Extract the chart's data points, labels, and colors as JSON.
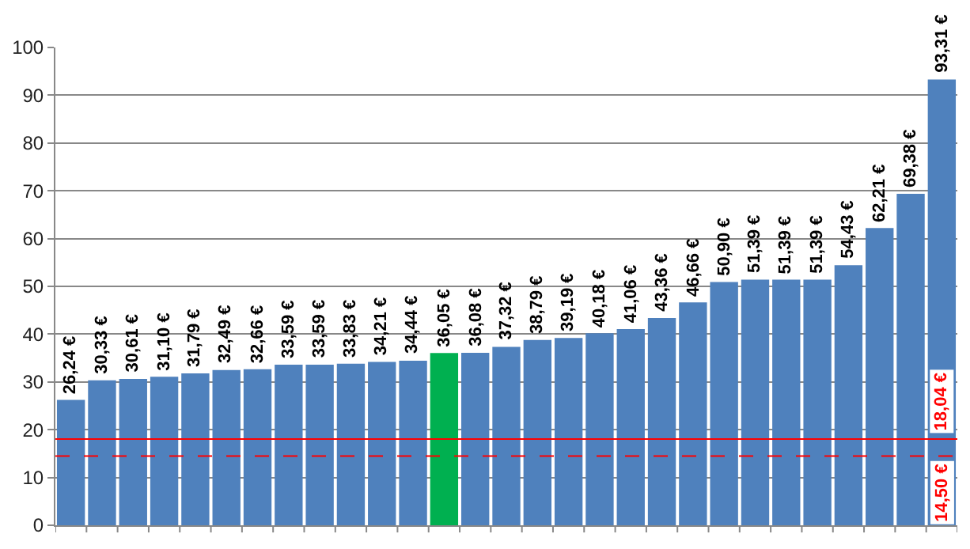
{
  "chart_data": {
    "type": "bar",
    "categories": [
      null,
      null,
      null,
      null,
      null,
      null,
      null,
      null,
      null,
      null,
      null,
      null,
      null,
      null,
      null,
      null,
      null,
      null,
      null,
      null,
      null,
      null,
      null,
      null,
      null,
      null,
      null,
      null,
      null
    ],
    "values": [
      26.24,
      30.33,
      30.61,
      31.1,
      31.79,
      32.49,
      32.66,
      33.59,
      33.59,
      33.83,
      34.21,
      34.44,
      36.05,
      36.08,
      37.32,
      38.79,
      39.19,
      40.18,
      41.06,
      43.36,
      46.66,
      50.9,
      51.39,
      51.39,
      51.39,
      54.43,
      62.21,
      69.38,
      93.31
    ],
    "colors": [
      "#4f81bd",
      "#4f81bd",
      "#4f81bd",
      "#4f81bd",
      "#4f81bd",
      "#4f81bd",
      "#4f81bd",
      "#4f81bd",
      "#4f81bd",
      "#4f81bd",
      "#4f81bd",
      "#4f81bd",
      "#00b050",
      "#4f81bd",
      "#4f81bd",
      "#4f81bd",
      "#4f81bd",
      "#4f81bd",
      "#4f81bd",
      "#4f81bd",
      "#4f81bd",
      "#4f81bd",
      "#4f81bd",
      "#4f81bd",
      "#4f81bd",
      "#4f81bd",
      "#4f81bd",
      "#4f81bd",
      "#4f81bd"
    ],
    "value_labels": [
      "26,24 €",
      "30,33 €",
      "30,61 €",
      "31,10 €",
      "31,79 €",
      "32,49 €",
      "32,66 €",
      "33,59 €",
      "33,59 €",
      "33,83 €",
      "34,21 €",
      "34,44 €",
      "36,05 €",
      "36,08 €",
      "37,32 €",
      "38,79 €",
      "39,19 €",
      "40,18 €",
      "41,06 €",
      "43,36 €",
      "46,66 €",
      "50,90 €",
      "51,39 €",
      "51,39 €",
      "51,39 €",
      "54,43 €",
      "62,21 €",
      "69,38 €",
      "93,31 €"
    ],
    "ylim": [
      0,
      100
    ],
    "yticks": [
      0,
      10,
      20,
      30,
      40,
      50,
      60,
      70,
      80,
      90,
      100
    ],
    "grid": "y",
    "tick_labels": "y",
    "ref_lines": [
      {
        "axis": "y",
        "value": 14.5,
        "label": "14,50 €",
        "color": "#ff0000",
        "line_style": "dashed"
      },
      {
        "axis": "y",
        "value": 18.04,
        "label": "18,04 €",
        "color": "#ff0000",
        "line_style": "solid"
      }
    ]
  }
}
